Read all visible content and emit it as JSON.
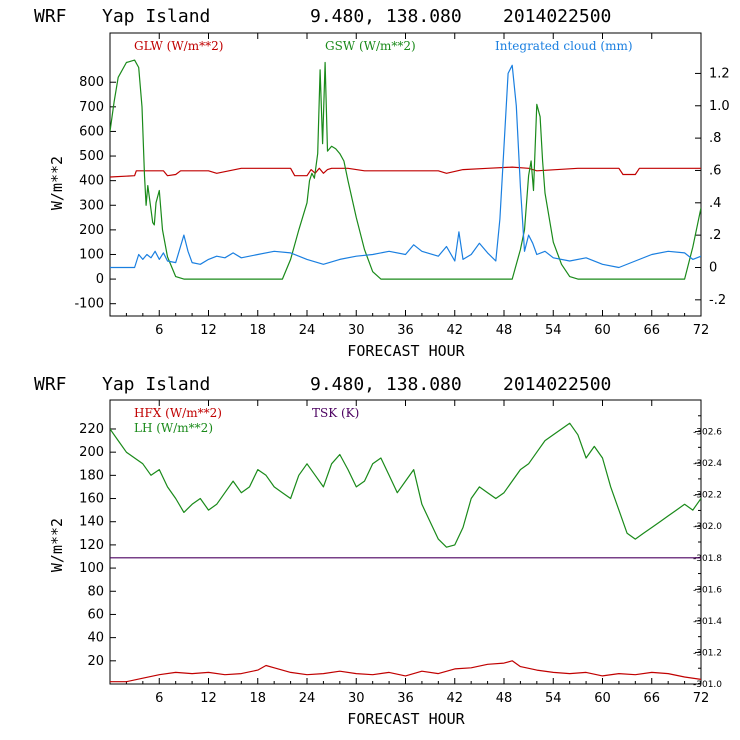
{
  "chart_data": [
    {
      "type": "line",
      "header": {
        "model": "WRF",
        "location": "Yap Island",
        "coords": "9.480, 138.080",
        "run": "2014022500"
      },
      "xlabel": "FORECAST HOUR",
      "ylabel": "W/m**2",
      "xlim": [
        0,
        72
      ],
      "ylim": [
        -150,
        1000
      ],
      "y2lim": [
        -0.3,
        1.45
      ],
      "x_ticks": [
        6,
        12,
        18,
        24,
        30,
        36,
        42,
        48,
        54,
        60,
        66,
        72
      ],
      "y_ticks": [
        -100,
        0,
        100,
        200,
        300,
        400,
        500,
        600,
        700,
        800
      ],
      "y2_ticks": [
        -0.2,
        0,
        0.2,
        0.4,
        0.6,
        0.8,
        1.0,
        1.2
      ],
      "y2_tick_labels": [
        "-.2",
        "0",
        ".2",
        ".4",
        ".6",
        ".8",
        "1.0",
        "1.2"
      ],
      "series": [
        {
          "name": "GLW (W/m**2)",
          "color": "#c00000",
          "axis": "left",
          "x": [
            0,
            3,
            3.2,
            6.5,
            7,
            8,
            8.6,
            12,
            13,
            16,
            22,
            22.5,
            24,
            24.5,
            25,
            25.5,
            26,
            26.5,
            27,
            29,
            31,
            34,
            40,
            41,
            43,
            46,
            49,
            51,
            52,
            57,
            62,
            62.5,
            64,
            64.5,
            66,
            72
          ],
          "y": [
            415,
            420,
            440,
            440,
            420,
            425,
            440,
            440,
            430,
            450,
            450,
            420,
            420,
            445,
            430,
            450,
            430,
            445,
            450,
            450,
            440,
            440,
            440,
            430,
            445,
            450,
            455,
            450,
            440,
            450,
            450,
            425,
            425,
            450,
            450,
            450
          ]
        },
        {
          "name": "GSW (W/m**2)",
          "color": "#1a8a1a",
          "axis": "left",
          "x": [
            0,
            0.5,
            1,
            2,
            3,
            3.5,
            3.9,
            4.2,
            4.4,
            4.6,
            5.2,
            5.4,
            5.6,
            6,
            6.4,
            7,
            8,
            9,
            10,
            21,
            22,
            23,
            24,
            24.3,
            24.6,
            24.9,
            25.3,
            25.6,
            25.9,
            26.2,
            26.5,
            27,
            27.5,
            28,
            28.5,
            29,
            30,
            31,
            32,
            33,
            49,
            50,
            50.5,
            51,
            51.3,
            51.6,
            52,
            52.4,
            52.7,
            53,
            54,
            55,
            56,
            57,
            70,
            71,
            72
          ],
          "y": [
            600,
            720,
            820,
            880,
            890,
            860,
            700,
            420,
            300,
            380,
            230,
            220,
            310,
            360,
            200,
            90,
            10,
            0,
            0,
            0,
            80,
            200,
            310,
            400,
            430,
            410,
            510,
            850,
            550,
            880,
            520,
            540,
            530,
            510,
            480,
            400,
            250,
            120,
            30,
            0,
            0,
            120,
            200,
            420,
            480,
            360,
            710,
            660,
            480,
            350,
            150,
            60,
            10,
            0,
            0,
            130,
            290
          ]
        },
        {
          "name": "Integrated cloud (mm)",
          "color": "#1a7fe0",
          "axis": "right",
          "x": [
            0,
            3,
            3.5,
            4,
            4.5,
            5,
            5.5,
            6,
            6.5,
            7,
            8,
            9,
            9.5,
            10,
            11,
            12,
            13,
            14,
            15,
            16,
            18,
            20,
            22,
            24,
            26,
            28,
            30,
            32,
            34,
            36,
            37,
            38,
            40,
            41,
            42,
            42.5,
            43,
            44,
            45,
            46,
            47,
            47.5,
            48,
            48.5,
            49,
            49.5,
            50,
            50.5,
            51,
            51.5,
            52,
            53,
            54,
            56,
            58,
            60,
            62,
            64,
            66,
            68,
            70,
            71,
            72
          ],
          "y": [
            0,
            0,
            0.08,
            0.05,
            0.08,
            0.06,
            0.1,
            0.05,
            0.09,
            0.04,
            0.03,
            0.2,
            0.1,
            0.03,
            0.02,
            0.05,
            0.07,
            0.06,
            0.09,
            0.06,
            0.08,
            0.1,
            0.09,
            0.05,
            0.02,
            0.05,
            0.07,
            0.08,
            0.1,
            0.08,
            0.14,
            0.1,
            0.07,
            0.13,
            0.04,
            0.22,
            0.05,
            0.08,
            0.15,
            0.09,
            0.04,
            0.3,
            0.75,
            1.2,
            1.25,
            1.0,
            0.5,
            0.1,
            0.2,
            0.15,
            0.08,
            0.1,
            0.06,
            0.04,
            0.06,
            0.02,
            0.0,
            0.04,
            0.08,
            0.1,
            0.09,
            0.05,
            0.07
          ]
        }
      ]
    },
    {
      "type": "line",
      "header": {
        "model": "WRF",
        "location": "Yap Island",
        "coords": "9.480, 138.080",
        "run": "2014022500"
      },
      "xlabel": "FORECAST HOUR",
      "ylabel": "W/m**2",
      "xlim": [
        0,
        72
      ],
      "ylim": [
        0,
        245
      ],
      "y2lim": [
        301.0,
        302.8
      ],
      "x_ticks": [
        6,
        12,
        18,
        24,
        30,
        36,
        42,
        48,
        54,
        60,
        66,
        72
      ],
      "y_ticks": [
        20,
        40,
        60,
        80,
        100,
        120,
        140,
        160,
        180,
        200,
        220
      ],
      "y2_ticks": [
        301.0,
        301.2,
        301.4,
        301.6,
        301.8,
        302.0,
        302.2,
        302.4,
        302.6
      ],
      "y2_tick_labels": [
        "-301.0",
        "-301.2",
        "-301.4",
        "-301.6",
        "-301.8",
        "-302.0",
        "-302.2",
        "-302.4",
        "-302.6"
      ],
      "series": [
        {
          "name": "HFX (W/m**2)",
          "color": "#c00000",
          "axis": "left",
          "x": [
            0,
            2,
            4,
            6,
            8,
            10,
            12,
            14,
            16,
            18,
            19,
            20,
            22,
            24,
            26,
            28,
            30,
            32,
            34,
            36,
            38,
            40,
            42,
            44,
            46,
            48,
            49,
            50,
            52,
            54,
            56,
            58,
            60,
            62,
            64,
            66,
            68,
            70,
            72
          ],
          "y": [
            2,
            2,
            5,
            8,
            10,
            9,
            10,
            8,
            9,
            12,
            16,
            14,
            10,
            8,
            9,
            11,
            9,
            8,
            10,
            7,
            11,
            9,
            13,
            14,
            17,
            18,
            20,
            15,
            12,
            10,
            9,
            10,
            7,
            9,
            8,
            10,
            9,
            6,
            4
          ]
        },
        {
          "name": "LH (W/m**2)",
          "color": "#1a8a1a",
          "axis": "left",
          "x": [
            0,
            1,
            2,
            3,
            4,
            5,
            6,
            7,
            8,
            9,
            10,
            11,
            12,
            13,
            14,
            15,
            16,
            17,
            18,
            19,
            20,
            21,
            22,
            23,
            24,
            25,
            26,
            27,
            28,
            29,
            30,
            31,
            32,
            33,
            34,
            35,
            36,
            37,
            38,
            39,
            40,
            41,
            42,
            43,
            44,
            45,
            46,
            47,
            48,
            49,
            50,
            51,
            52,
            53,
            54,
            55,
            56,
            57,
            58,
            59,
            60,
            61,
            62,
            63,
            64,
            65,
            66,
            67,
            68,
            69,
            70,
            71,
            72
          ],
          "y": [
            220,
            210,
            200,
            195,
            190,
            180,
            185,
            170,
            160,
            148,
            155,
            160,
            150,
            155,
            165,
            175,
            165,
            170,
            185,
            180,
            170,
            165,
            160,
            180,
            190,
            180,
            170,
            190,
            198,
            185,
            170,
            175,
            190,
            195,
            180,
            165,
            175,
            185,
            155,
            140,
            125,
            118,
            120,
            135,
            160,
            170,
            165,
            160,
            165,
            175,
            185,
            190,
            200,
            210,
            215,
            220,
            225,
            215,
            195,
            205,
            195,
            170,
            150,
            130,
            125,
            130,
            135,
            140,
            145,
            150,
            155,
            150,
            160
          ]
        },
        {
          "name": "TSK (K)",
          "color": "#4b0060",
          "axis": "right",
          "x": [
            0,
            72
          ],
          "y": [
            301.8,
            301.8
          ]
        }
      ]
    }
  ]
}
